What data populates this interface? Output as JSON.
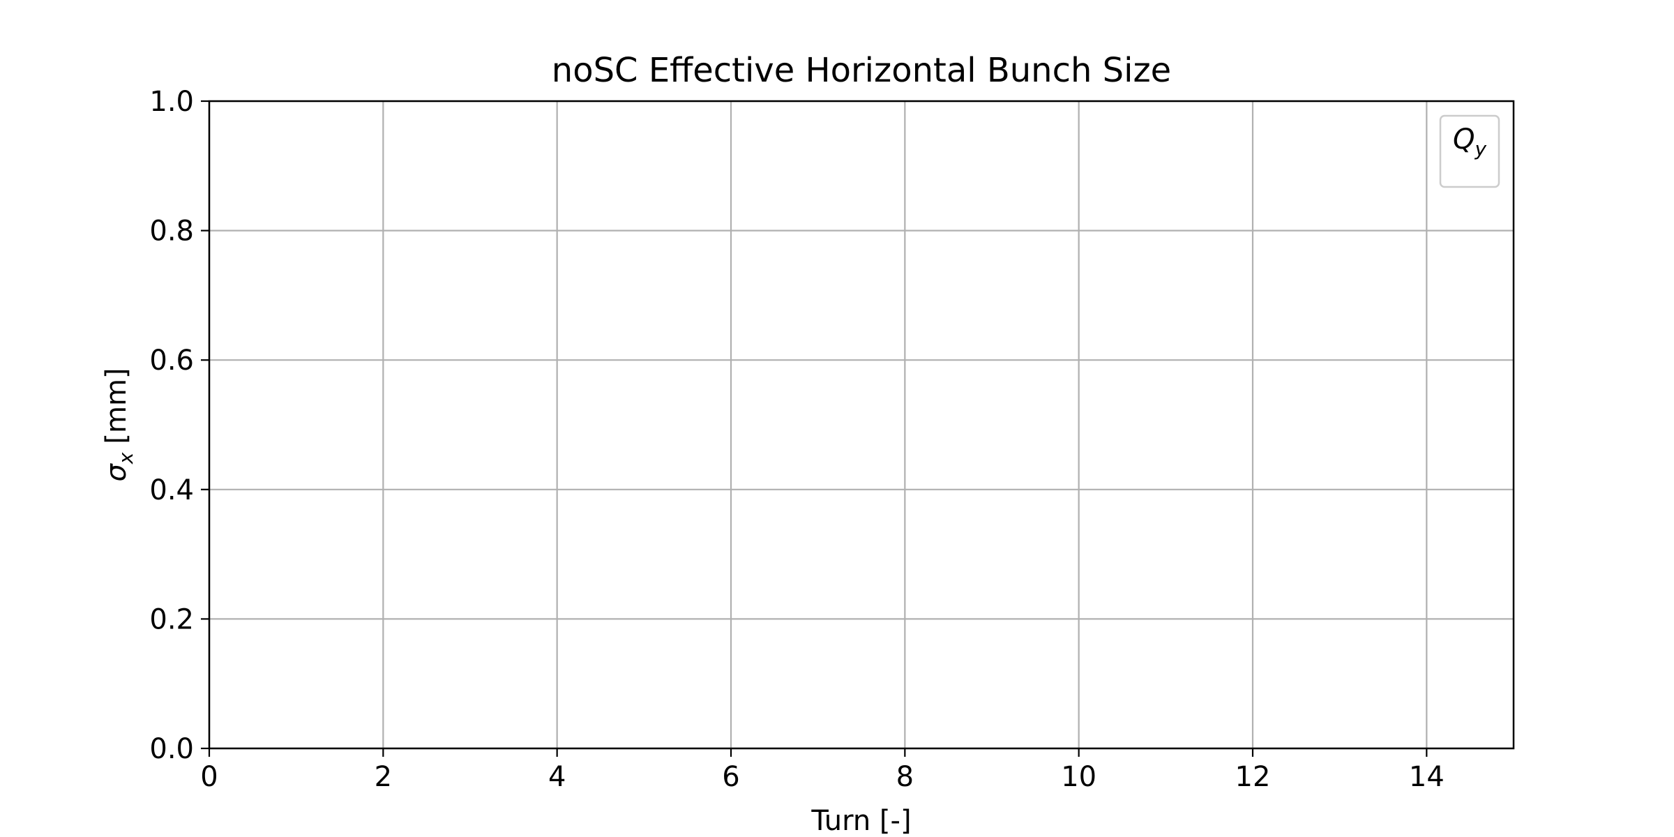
{
  "chart_data": {
    "type": "line",
    "title": "noSC Effective Horizontal Bunch Size",
    "xlabel": "Turn [-]",
    "ylabel": {
      "symbol": "σ",
      "subscript": "x",
      "unit": "[mm]"
    },
    "xlim": [
      0,
      15
    ],
    "ylim": [
      0,
      1
    ],
    "x_ticks": [
      0,
      2,
      4,
      6,
      8,
      10,
      12,
      14
    ],
    "y_ticks": [
      0.0,
      0.2,
      0.4,
      0.6,
      0.8,
      1.0
    ],
    "x_tick_labels": [
      "0",
      "2",
      "4",
      "6",
      "8",
      "10",
      "12",
      "14"
    ],
    "y_tick_labels": [
      "0.0",
      "0.2",
      "0.4",
      "0.6",
      "0.8",
      "1.0"
    ],
    "grid": true,
    "legend": {
      "placement": "top-right",
      "title": {
        "symbol": "Q",
        "subscript": "y"
      },
      "entries": []
    },
    "series": []
  },
  "colors": {
    "grid": "#b0b0b0",
    "axes": "#000000",
    "legend_border": "#cccccc",
    "background": "#ffffff"
  }
}
